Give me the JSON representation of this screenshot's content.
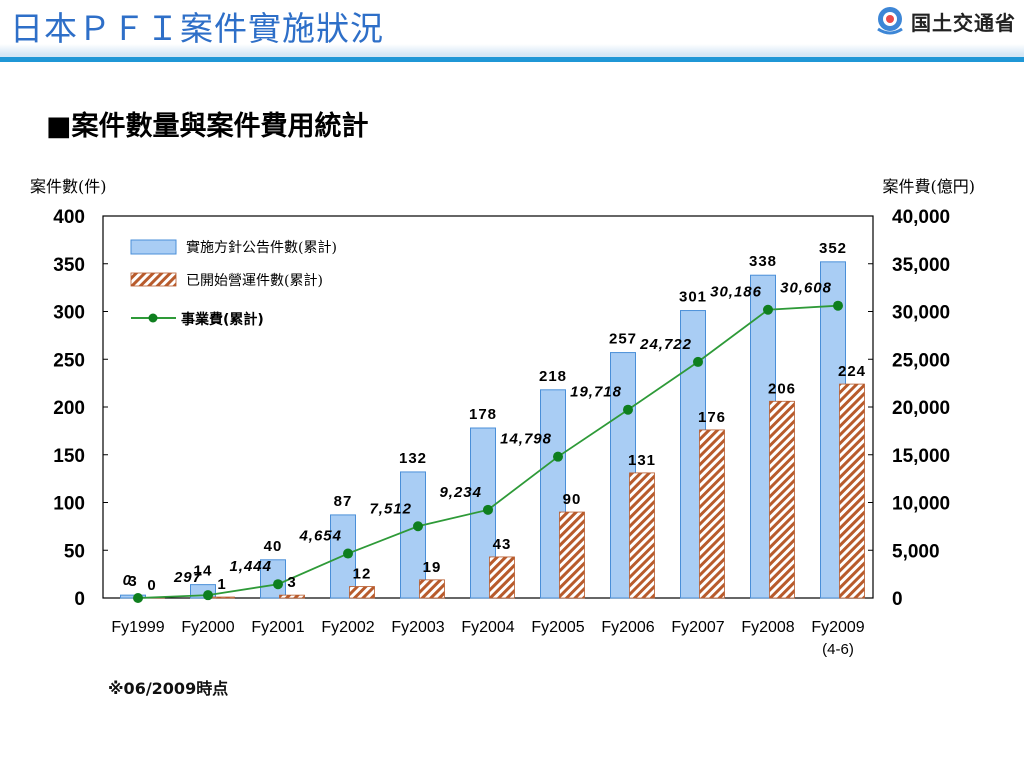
{
  "header": {
    "title": "日本ＰＦＩ案件實施狀況",
    "logo_text": "国土交通省",
    "logo_icon": "mlit-logo-icon"
  },
  "section": {
    "title": "■案件數量與案件費用統計"
  },
  "footnote": "※06/2009時点",
  "colors": {
    "title": "#2e6fc8",
    "band": "#1f97d6",
    "bar_fill": "#a9cdf4",
    "bar_stroke": "#4a8fd8",
    "hatch": "#b85b2c",
    "line": "#2e9a38",
    "marker": "#0f7f1f"
  },
  "chart_data": {
    "type": "bar",
    "title": "",
    "y_left_label": "案件數(件)",
    "y_right_label": "案件費(億円)",
    "y_left_ticks": [
      "0",
      "50",
      "100",
      "150",
      "200",
      "250",
      "300",
      "350",
      "400"
    ],
    "y_right_ticks": [
      "0",
      "5,000",
      "10,000",
      "15,000",
      "20,000",
      "25,000",
      "30,000",
      "35,000",
      "40,000"
    ],
    "ylim_left": [
      0,
      400
    ],
    "ylim_right": [
      0,
      40000
    ],
    "categories": [
      "Fy1999",
      "Fy2000",
      "Fy2001",
      "Fy2002",
      "Fy2003",
      "Fy2004",
      "Fy2005",
      "Fy2006",
      "Fy2007",
      "Fy2008",
      "Fy2009"
    ],
    "category_notes": [
      "",
      "",
      "",
      "",
      "",
      "",
      "",
      "",
      "",
      "",
      "(4-6)"
    ],
    "series": [
      {
        "name": "實施方針公告件數(累計)",
        "kind": "bar",
        "axis": "left",
        "values": [
          3,
          14,
          40,
          87,
          132,
          178,
          218,
          257,
          301,
          338,
          352
        ],
        "labels": [
          "3",
          "14",
          "40",
          "87",
          "132",
          "178",
          "218",
          "257",
          "301",
          "338",
          "352"
        ]
      },
      {
        "name": "已開始營運件數(累計)",
        "kind": "bar-hatched",
        "axis": "left",
        "values": [
          0,
          1,
          3,
          12,
          19,
          43,
          90,
          131,
          176,
          206,
          224
        ],
        "labels": [
          "0",
          "1",
          "3",
          "12",
          "19",
          "43",
          "90",
          "131",
          "176",
          "206",
          "224"
        ]
      },
      {
        "name": "事業費(累計)",
        "kind": "line",
        "axis": "right",
        "values": [
          0,
          297,
          1444,
          4654,
          7512,
          9234,
          14798,
          19718,
          24722,
          30186,
          30608
        ],
        "labels": [
          "0",
          "297",
          "1,444",
          "4,654",
          "7,512",
          "9,234",
          "14,798",
          "19,718",
          "24,722",
          "30,186",
          "30,608"
        ]
      }
    ]
  }
}
